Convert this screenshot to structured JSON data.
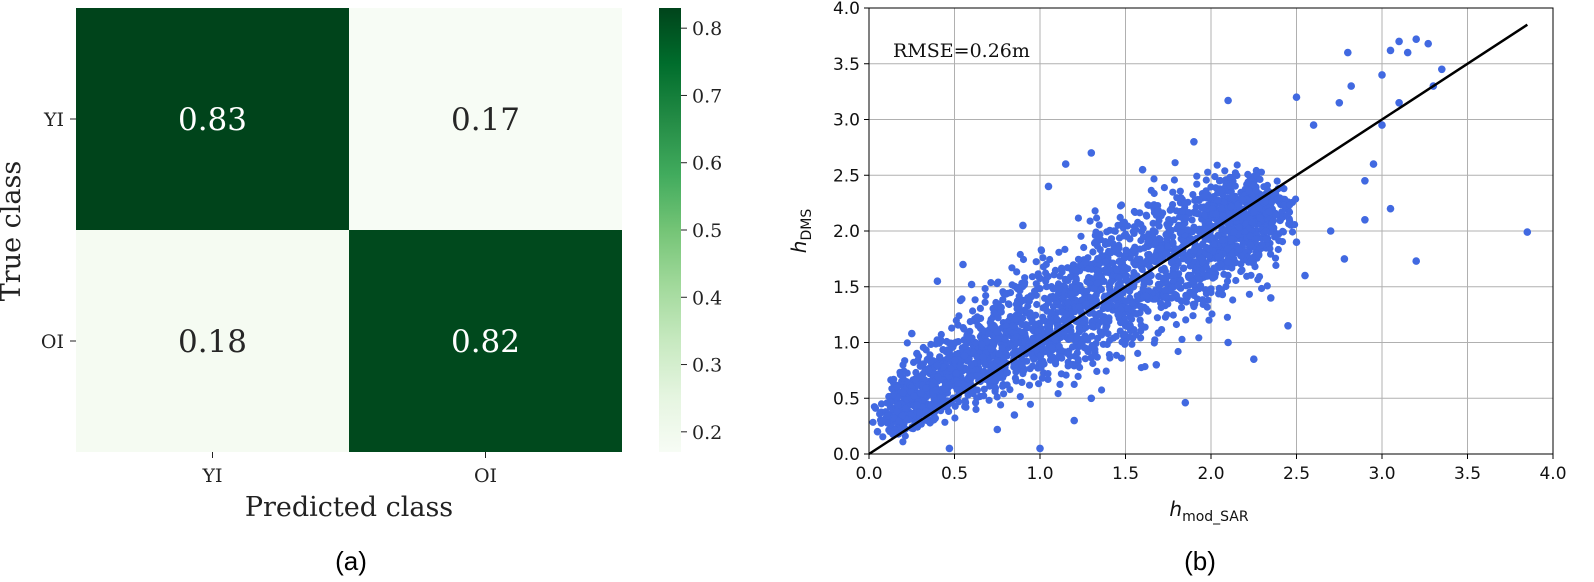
{
  "chart_data": [
    {
      "type": "heatmap",
      "panel_label": "(a)",
      "xlabel": "Predicted class",
      "ylabel": "True class",
      "x_categories": [
        "YI",
        "OI"
      ],
      "y_categories": [
        "YI",
        "OI"
      ],
      "values": [
        [
          0.83,
          0.17
        ],
        [
          0.18,
          0.82
        ]
      ],
      "value_labels": [
        [
          "0.83",
          "0.17"
        ],
        [
          "0.18",
          "0.82"
        ]
      ],
      "colorbar": {
        "range": [
          0.17,
          0.83
        ],
        "ticks": [
          0.2,
          0.3,
          0.4,
          0.5,
          0.6,
          0.7,
          0.8
        ],
        "tick_labels": [
          "0.2",
          "0.3",
          "0.4",
          "0.5",
          "0.6",
          "0.7",
          "0.8"
        ]
      },
      "colormap": [
        "#f7fcf5",
        "#e5f5e0",
        "#c7e9c0",
        "#a1d99b",
        "#74c476",
        "#41ab5d",
        "#238b45",
        "#006d2c",
        "#00441b"
      ]
    },
    {
      "type": "scatter",
      "panel_label": "(b)",
      "xlabel": {
        "main": "h",
        "sub": "mod_SAR"
      },
      "ylabel": {
        "main": "h",
        "sub": "DMS"
      },
      "xlim": [
        0.0,
        4.0
      ],
      "ylim": [
        0.0,
        4.0
      ],
      "xticks": [
        "0.0",
        "0.5",
        "1.0",
        "1.5",
        "2.0",
        "2.5",
        "3.0",
        "3.5",
        "4.0"
      ],
      "yticks": [
        "0.0",
        "0.5",
        "1.0",
        "1.5",
        "2.0",
        "2.5",
        "3.0",
        "3.5",
        "4.0"
      ],
      "grid": true,
      "annotation": "RMSE=0.26m",
      "marker_color": "#4169e1",
      "fit_line": {
        "x": [
          0.0,
          3.85
        ],
        "y": [
          0.0,
          3.85
        ],
        "color": "#000000"
      },
      "dense_cloud": {
        "spine": [
          [
            0.12,
            0.28
          ],
          [
            0.5,
            0.75
          ],
          [
            1.0,
            1.1
          ],
          [
            1.5,
            1.55
          ],
          [
            2.0,
            1.95
          ],
          [
            2.35,
            2.3
          ]
        ],
        "half_width": [
          0.12,
          0.3,
          0.42,
          0.48,
          0.45,
          0.22
        ]
      },
      "outlier_points": [
        [
          3.85,
          1.99
        ],
        [
          3.2,
          1.73
        ],
        [
          3.1,
          3.7
        ],
        [
          3.2,
          3.72
        ],
        [
          3.27,
          3.68
        ],
        [
          3.05,
          3.62
        ],
        [
          2.8,
          3.6
        ],
        [
          3.15,
          3.6
        ],
        [
          3.0,
          3.4
        ],
        [
          2.82,
          3.3
        ],
        [
          2.75,
          3.15
        ],
        [
          3.3,
          3.3
        ],
        [
          3.0,
          2.95
        ],
        [
          2.95,
          2.6
        ],
        [
          2.9,
          2.45
        ],
        [
          3.05,
          2.2
        ],
        [
          2.9,
          2.1
        ],
        [
          2.78,
          1.75
        ],
        [
          2.55,
          1.6
        ],
        [
          2.5,
          1.9
        ],
        [
          2.35,
          1.4
        ],
        [
          2.45,
          1.15
        ],
        [
          2.1,
          3.17
        ],
        [
          2.5,
          3.2
        ],
        [
          2.6,
          2.95
        ],
        [
          1.3,
          2.7
        ],
        [
          1.15,
          2.6
        ],
        [
          1.05,
          2.4
        ],
        [
          0.6,
          1.52
        ],
        [
          0.4,
          1.55
        ],
        [
          0.25,
          1.08
        ],
        [
          0.28,
          0.9
        ],
        [
          0.47,
          0.05
        ],
        [
          1.0,
          0.05
        ],
        [
          1.85,
          0.46
        ],
        [
          1.68,
          0.8
        ],
        [
          0.05,
          0.2
        ],
        [
          0.08,
          0.3
        ],
        [
          0.14,
          0.18
        ],
        [
          0.85,
          0.35
        ],
        [
          1.3,
          0.5
        ],
        [
          2.1,
          1.0
        ],
        [
          3.35,
          3.45
        ],
        [
          3.1,
          3.15
        ],
        [
          2.7,
          2.0
        ],
        [
          1.9,
          2.8
        ],
        [
          1.6,
          2.55
        ],
        [
          0.2,
          0.55
        ],
        [
          0.75,
          0.22
        ],
        [
          1.2,
          0.3
        ],
        [
          2.25,
          0.85
        ],
        [
          0.55,
          1.7
        ],
        [
          0.9,
          2.05
        ]
      ]
    }
  ]
}
